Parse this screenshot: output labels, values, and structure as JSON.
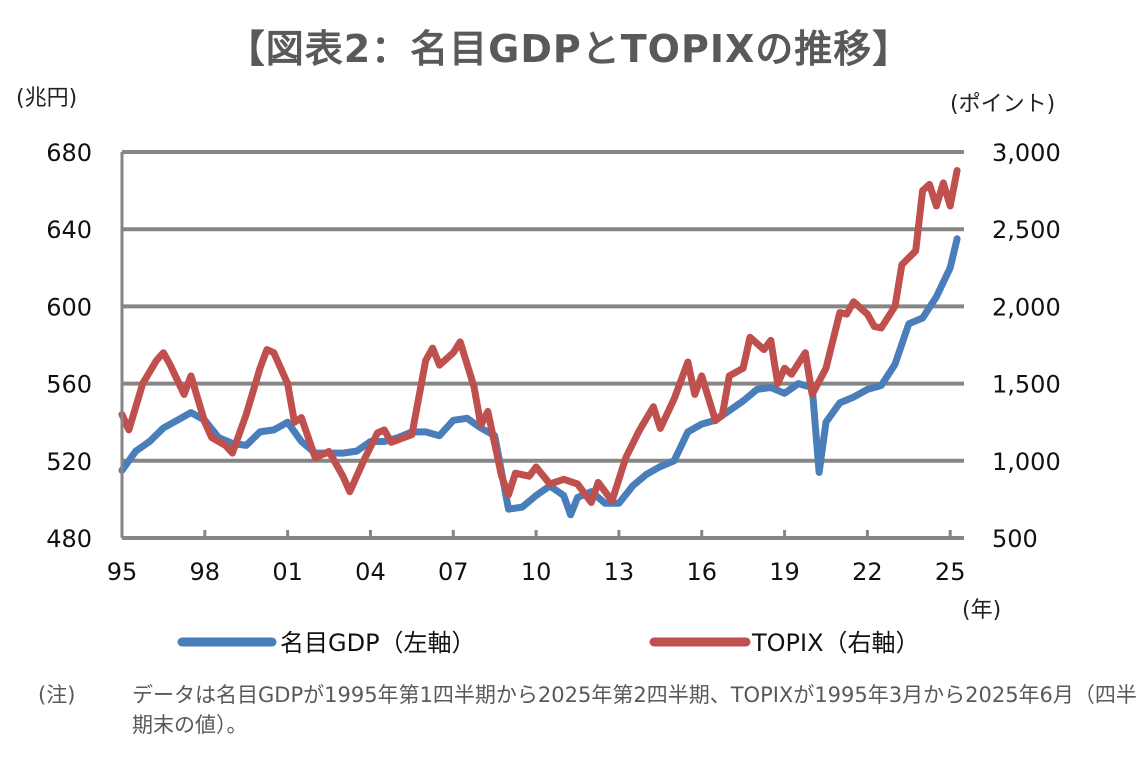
{
  "title": "【図表2：名目GDPとTOPIXの推移】",
  "note": {
    "label": "(注)",
    "text": "データは名目GDPが1995年第1四半期から2025年第2四半期、TOPIXが1995年3月から2025年6月（四半期末の値）。"
  },
  "chart_data": {
    "type": "line",
    "title": "【図表2：名目GDPとTOPIXの推移】",
    "xlabel": "(年)",
    "ylabel_left": "(兆円)",
    "ylabel_right": "(ポイント)",
    "xlim": [
      1995,
      2025.5
    ],
    "ylim_left": [
      480,
      680
    ],
    "ylim_right": [
      500,
      3000
    ],
    "x_ticks": [
      1995,
      1998,
      2001,
      2004,
      2007,
      2010,
      2013,
      2016,
      2019,
      2022,
      2025
    ],
    "x_tick_labels": [
      "95",
      "98",
      "01",
      "04",
      "07",
      "10",
      "13",
      "16",
      "19",
      "22",
      "25"
    ],
    "y_left_ticks": [
      "480",
      "520",
      "560",
      "600",
      "640",
      "680"
    ],
    "y_right_ticks": [
      "500",
      "1,000",
      "1,500",
      "2,000",
      "2,500",
      "3,000"
    ],
    "grid": true,
    "legend_position": "bottom",
    "series": [
      {
        "name": "名目GDP（左軸）",
        "axis": "left",
        "color": "#4a7ebb",
        "points": [
          [
            1995,
            515
          ],
          [
            1995.5,
            525
          ],
          [
            1996,
            530
          ],
          [
            1996.5,
            537
          ],
          [
            1997,
            541
          ],
          [
            1997.5,
            545
          ],
          [
            1998,
            541
          ],
          [
            1998.5,
            532
          ],
          [
            1999,
            529
          ],
          [
            1999.5,
            528
          ],
          [
            2000,
            535
          ],
          [
            2000.5,
            536
          ],
          [
            2001,
            540
          ],
          [
            2001.5,
            530
          ],
          [
            2002,
            524
          ],
          [
            2002.5,
            524
          ],
          [
            2003,
            524
          ],
          [
            2003.5,
            525
          ],
          [
            2004,
            530
          ],
          [
            2004.5,
            530
          ],
          [
            2005,
            532
          ],
          [
            2005.5,
            535
          ],
          [
            2006,
            535
          ],
          [
            2006.5,
            533
          ],
          [
            2007,
            541
          ],
          [
            2007.5,
            542
          ],
          [
            2008,
            537
          ],
          [
            2008.5,
            533
          ],
          [
            2009,
            495
          ],
          [
            2009.5,
            496
          ],
          [
            2010,
            502
          ],
          [
            2010.5,
            507
          ],
          [
            2011,
            502
          ],
          [
            2011.25,
            492
          ],
          [
            2011.5,
            501
          ],
          [
            2012,
            504
          ],
          [
            2012.5,
            498
          ],
          [
            2013,
            498
          ],
          [
            2013.5,
            507
          ],
          [
            2014,
            513
          ],
          [
            2014.5,
            517
          ],
          [
            2015,
            520
          ],
          [
            2015.5,
            535
          ],
          [
            2016,
            539
          ],
          [
            2016.5,
            541
          ],
          [
            2017,
            546
          ],
          [
            2017.5,
            551
          ],
          [
            2018,
            557
          ],
          [
            2018.5,
            558
          ],
          [
            2019,
            555
          ],
          [
            2019.5,
            560
          ],
          [
            2020,
            558
          ],
          [
            2020.25,
            514
          ],
          [
            2020.5,
            540
          ],
          [
            2021,
            550
          ],
          [
            2021.5,
            553
          ],
          [
            2022,
            557
          ],
          [
            2022.5,
            559
          ],
          [
            2023,
            570
          ],
          [
            2023.5,
            591
          ],
          [
            2024,
            594
          ],
          [
            2024.5,
            605
          ],
          [
            2025,
            620
          ],
          [
            2025.25,
            635
          ]
        ]
      },
      {
        "name": "TOPIX（右軸）",
        "axis": "right",
        "color": "#c0504d",
        "points": [
          [
            1995,
            1300
          ],
          [
            1995.25,
            1200
          ],
          [
            1995.75,
            1500
          ],
          [
            1996.25,
            1650
          ],
          [
            1996.5,
            1700
          ],
          [
            1996.75,
            1620
          ],
          [
            1997.25,
            1430
          ],
          [
            1997.5,
            1550
          ],
          [
            1998,
            1250
          ],
          [
            1998.25,
            1150
          ],
          [
            1998.75,
            1100
          ],
          [
            1999,
            1050
          ],
          [
            1999.5,
            1300
          ],
          [
            2000,
            1600
          ],
          [
            2000.25,
            1720
          ],
          [
            2000.5,
            1700
          ],
          [
            2001,
            1500
          ],
          [
            2001.25,
            1250
          ],
          [
            2001.5,
            1280
          ],
          [
            2002,
            1020
          ],
          [
            2002.5,
            1060
          ],
          [
            2003,
            900
          ],
          [
            2003.25,
            800
          ],
          [
            2003.75,
            1000
          ],
          [
            2004.25,
            1180
          ],
          [
            2004.5,
            1200
          ],
          [
            2004.75,
            1120
          ],
          [
            2005.5,
            1170
          ],
          [
            2006,
            1650
          ],
          [
            2006.25,
            1730
          ],
          [
            2006.5,
            1620
          ],
          [
            2007,
            1700
          ],
          [
            2007.25,
            1770
          ],
          [
            2007.75,
            1480
          ],
          [
            2008,
            1230
          ],
          [
            2008.25,
            1320
          ],
          [
            2008.75,
            900
          ],
          [
            2009,
            780
          ],
          [
            2009.25,
            920
          ],
          [
            2009.75,
            900
          ],
          [
            2010,
            960
          ],
          [
            2010.5,
            850
          ],
          [
            2011,
            880
          ],
          [
            2011.5,
            850
          ],
          [
            2012,
            730
          ],
          [
            2012.25,
            860
          ],
          [
            2012.75,
            740
          ],
          [
            2013.25,
            1020
          ],
          [
            2013.75,
            1200
          ],
          [
            2014.25,
            1350
          ],
          [
            2014.5,
            1210
          ],
          [
            2015,
            1400
          ],
          [
            2015.5,
            1640
          ],
          [
            2015.75,
            1430
          ],
          [
            2016,
            1550
          ],
          [
            2016.5,
            1260
          ],
          [
            2016.75,
            1300
          ],
          [
            2017,
            1550
          ],
          [
            2017.5,
            1600
          ],
          [
            2017.75,
            1800
          ],
          [
            2018.25,
            1720
          ],
          [
            2018.5,
            1780
          ],
          [
            2018.75,
            1500
          ],
          [
            2019,
            1600
          ],
          [
            2019.25,
            1560
          ],
          [
            2019.75,
            1700
          ],
          [
            2020,
            1430
          ],
          [
            2020.5,
            1600
          ],
          [
            2021,
            1960
          ],
          [
            2021.25,
            1950
          ],
          [
            2021.5,
            2030
          ],
          [
            2022,
            1950
          ],
          [
            2022.25,
            1870
          ],
          [
            2022.5,
            1860
          ],
          [
            2023,
            2000
          ],
          [
            2023.25,
            2270
          ],
          [
            2023.75,
            2360
          ],
          [
            2024,
            2750
          ],
          [
            2024.25,
            2790
          ],
          [
            2024.5,
            2650
          ],
          [
            2024.75,
            2800
          ],
          [
            2025,
            2650
          ],
          [
            2025.25,
            2880
          ]
        ]
      }
    ]
  }
}
